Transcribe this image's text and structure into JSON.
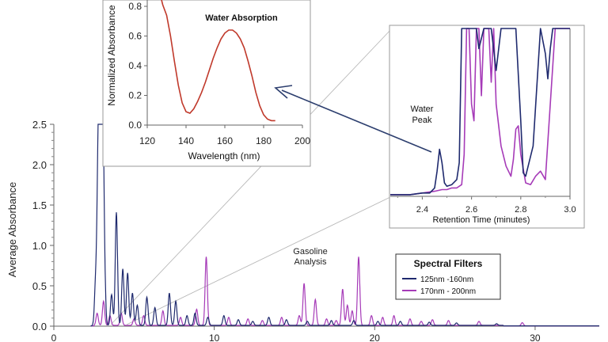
{
  "chart_data": [
    {
      "id": "main",
      "type": "line",
      "ylabel": "Average Absorbance",
      "xlabel": "",
      "ylim": [
        0,
        2.5
      ],
      "xlim": [
        0,
        34
      ],
      "x_ticks": [
        "0",
        "10",
        "20",
        "30"
      ],
      "y_ticks": [
        "0.0",
        "0.5",
        "1.0",
        "1.5",
        "2.0",
        "2.5"
      ],
      "annotation": [
        "Gasoline",
        "Analysis"
      ],
      "legend": {
        "title": "Spectral Filters",
        "position": "bottom-right",
        "entries": [
          "125nm -160nm",
          "170nm - 200nm"
        ]
      },
      "series": [
        {
          "name": "125nm -160nm",
          "color": "#1f2a6e",
          "peaks": [
            [
              2.6,
              0.5
            ],
            [
              2.75,
              1.6
            ],
            [
              2.85,
              2.0
            ],
            [
              2.95,
              2.05
            ],
            [
              3.05,
              2.15
            ],
            [
              3.15,
              0.6
            ],
            [
              3.6,
              0.38
            ],
            [
              3.9,
              1.4
            ],
            [
              4.3,
              0.7
            ],
            [
              4.6,
              0.65
            ],
            [
              4.9,
              0.4
            ],
            [
              5.2,
              0.25
            ],
            [
              5.8,
              0.35
            ],
            [
              6.3,
              0.22
            ],
            [
              7.2,
              0.4
            ],
            [
              7.6,
              0.3
            ],
            [
              8.3,
              0.12
            ],
            [
              8.8,
              0.15
            ],
            [
              9.6,
              0.1
            ],
            [
              10.6,
              0.12
            ],
            [
              11.5,
              0.07
            ],
            [
              12.4,
              0.05
            ],
            [
              13.4,
              0.1
            ],
            [
              14.5,
              0.07
            ],
            [
              15.8,
              0.05
            ],
            [
              17.3,
              0.06
            ],
            [
              18.7,
              0.06
            ],
            [
              20.2,
              0.05
            ],
            [
              21.6,
              0.05
            ],
            [
              23.4,
              0.04
            ],
            [
              25.1,
              0.03
            ],
            [
              27.6,
              0.02
            ]
          ]
        },
        {
          "name": "170nm - 200nm",
          "color": "#a63bb8",
          "peaks": [
            [
              2.7,
              0.15
            ],
            [
              3.1,
              0.3
            ],
            [
              3.5,
              0.12
            ],
            [
              4.2,
              0.15
            ],
            [
              5.0,
              0.08
            ],
            [
              5.6,
              0.12
            ],
            [
              6.8,
              0.18
            ],
            [
              7.9,
              0.1
            ],
            [
              8.9,
              0.2
            ],
            [
              9.5,
              0.85
            ],
            [
              10.9,
              0.1
            ],
            [
              12.1,
              0.08
            ],
            [
              13.0,
              0.06
            ],
            [
              14.2,
              0.1
            ],
            [
              15.3,
              0.12
            ],
            [
              15.6,
              0.52
            ],
            [
              16.3,
              0.32
            ],
            [
              17.0,
              0.08
            ],
            [
              17.6,
              0.06
            ],
            [
              18.0,
              0.45
            ],
            [
              18.3,
              0.25
            ],
            [
              18.6,
              0.18
            ],
            [
              19.0,
              0.85
            ],
            [
              19.8,
              0.12
            ],
            [
              20.5,
              0.1
            ],
            [
              21.2,
              0.12
            ],
            [
              22.2,
              0.08
            ],
            [
              22.9,
              0.05
            ],
            [
              23.6,
              0.07
            ],
            [
              24.6,
              0.06
            ],
            [
              26.5,
              0.05
            ],
            [
              29.2,
              0.04
            ]
          ]
        }
      ]
    },
    {
      "id": "inset-spectrum",
      "type": "line",
      "title": "Water Absorption",
      "xlabel": "Wavelength (nm)",
      "ylabel": "Normalized Absorbance",
      "xlim": [
        120,
        200
      ],
      "ylim": [
        0,
        0.8
      ],
      "x_ticks": [
        "120",
        "140",
        "160",
        "180",
        "200"
      ],
      "y_ticks": [
        "0.0",
        "0.2",
        "0.4",
        "0.6",
        "0.8"
      ],
      "series": [
        {
          "name": "",
          "color": "#c0392b",
          "x": [
            127,
            128,
            130,
            132,
            134,
            136,
            138,
            140,
            142,
            144,
            146,
            148,
            150,
            152,
            154,
            156,
            158,
            160,
            162,
            164,
            166,
            168,
            170,
            172,
            174,
            176,
            178,
            180,
            182,
            184,
            186
          ],
          "y": [
            0.86,
            0.81,
            0.74,
            0.6,
            0.43,
            0.27,
            0.15,
            0.09,
            0.08,
            0.11,
            0.16,
            0.22,
            0.29,
            0.37,
            0.45,
            0.52,
            0.58,
            0.62,
            0.64,
            0.64,
            0.62,
            0.58,
            0.52,
            0.43,
            0.33,
            0.22,
            0.13,
            0.07,
            0.04,
            0.03,
            0.03
          ]
        }
      ]
    },
    {
      "id": "inset-zoom",
      "type": "line",
      "xlabel": "Retention Time (minutes)",
      "xlim": [
        2.27,
        3.0
      ],
      "ylim": [
        0,
        1.0
      ],
      "x_ticks": [
        "2.4",
        "2.6",
        "2.8",
        "3.0"
      ],
      "annotation": [
        "Water",
        "Peak"
      ],
      "series": [
        {
          "name": "125nm -160nm",
          "color": "#1f2a6e",
          "x": [
            2.27,
            2.35,
            2.4,
            2.43,
            2.45,
            2.46,
            2.47,
            2.48,
            2.49,
            2.5,
            2.52,
            2.54,
            2.55,
            2.56,
            2.57,
            2.6,
            2.62,
            2.63,
            2.65,
            2.66,
            2.68,
            2.7,
            2.72,
            2.74,
            2.76,
            2.78,
            2.8,
            2.81,
            2.82,
            2.85,
            2.88,
            2.9,
            2.91,
            2.92,
            2.93,
            2.95,
            3.0
          ],
          "y": [
            0.01,
            0.01,
            0.02,
            0.02,
            0.05,
            0.15,
            0.28,
            0.2,
            0.08,
            0.06,
            0.07,
            0.1,
            0.2,
            1.0,
            1.0,
            1.0,
            1.0,
            0.88,
            1.0,
            1.0,
            1.0,
            0.75,
            1.0,
            1.0,
            1.0,
            1.0,
            0.45,
            0.14,
            0.12,
            0.3,
            1.0,
            0.85,
            0.7,
            0.88,
            1.0,
            1.0,
            1.0
          ]
        },
        {
          "name": "170nm - 200nm",
          "color": "#a63bb8",
          "x": [
            2.27,
            2.35,
            2.4,
            2.45,
            2.48,
            2.5,
            2.52,
            2.54,
            2.56,
            2.57,
            2.58,
            2.59,
            2.6,
            2.61,
            2.62,
            2.63,
            2.64,
            2.65,
            2.66,
            2.67,
            2.68,
            2.69,
            2.7,
            2.72,
            2.74,
            2.76,
            2.77,
            2.78,
            2.79,
            2.8,
            2.82,
            2.84,
            2.86,
            2.88,
            2.9,
            2.92,
            2.94,
            2.95,
            3.0
          ],
          "y": [
            0.01,
            0.01,
            0.02,
            0.03,
            0.04,
            0.04,
            0.05,
            0.05,
            0.07,
            0.25,
            1.0,
            1.0,
            0.55,
            0.45,
            1.0,
            1.0,
            0.6,
            1.0,
            1.0,
            1.0,
            0.68,
            1.0,
            0.55,
            0.3,
            0.18,
            0.12,
            0.22,
            0.4,
            0.42,
            0.25,
            0.08,
            0.07,
            0.12,
            0.15,
            0.1,
            0.55,
            1.0,
            1.0,
            1.0
          ]
        }
      ]
    }
  ]
}
